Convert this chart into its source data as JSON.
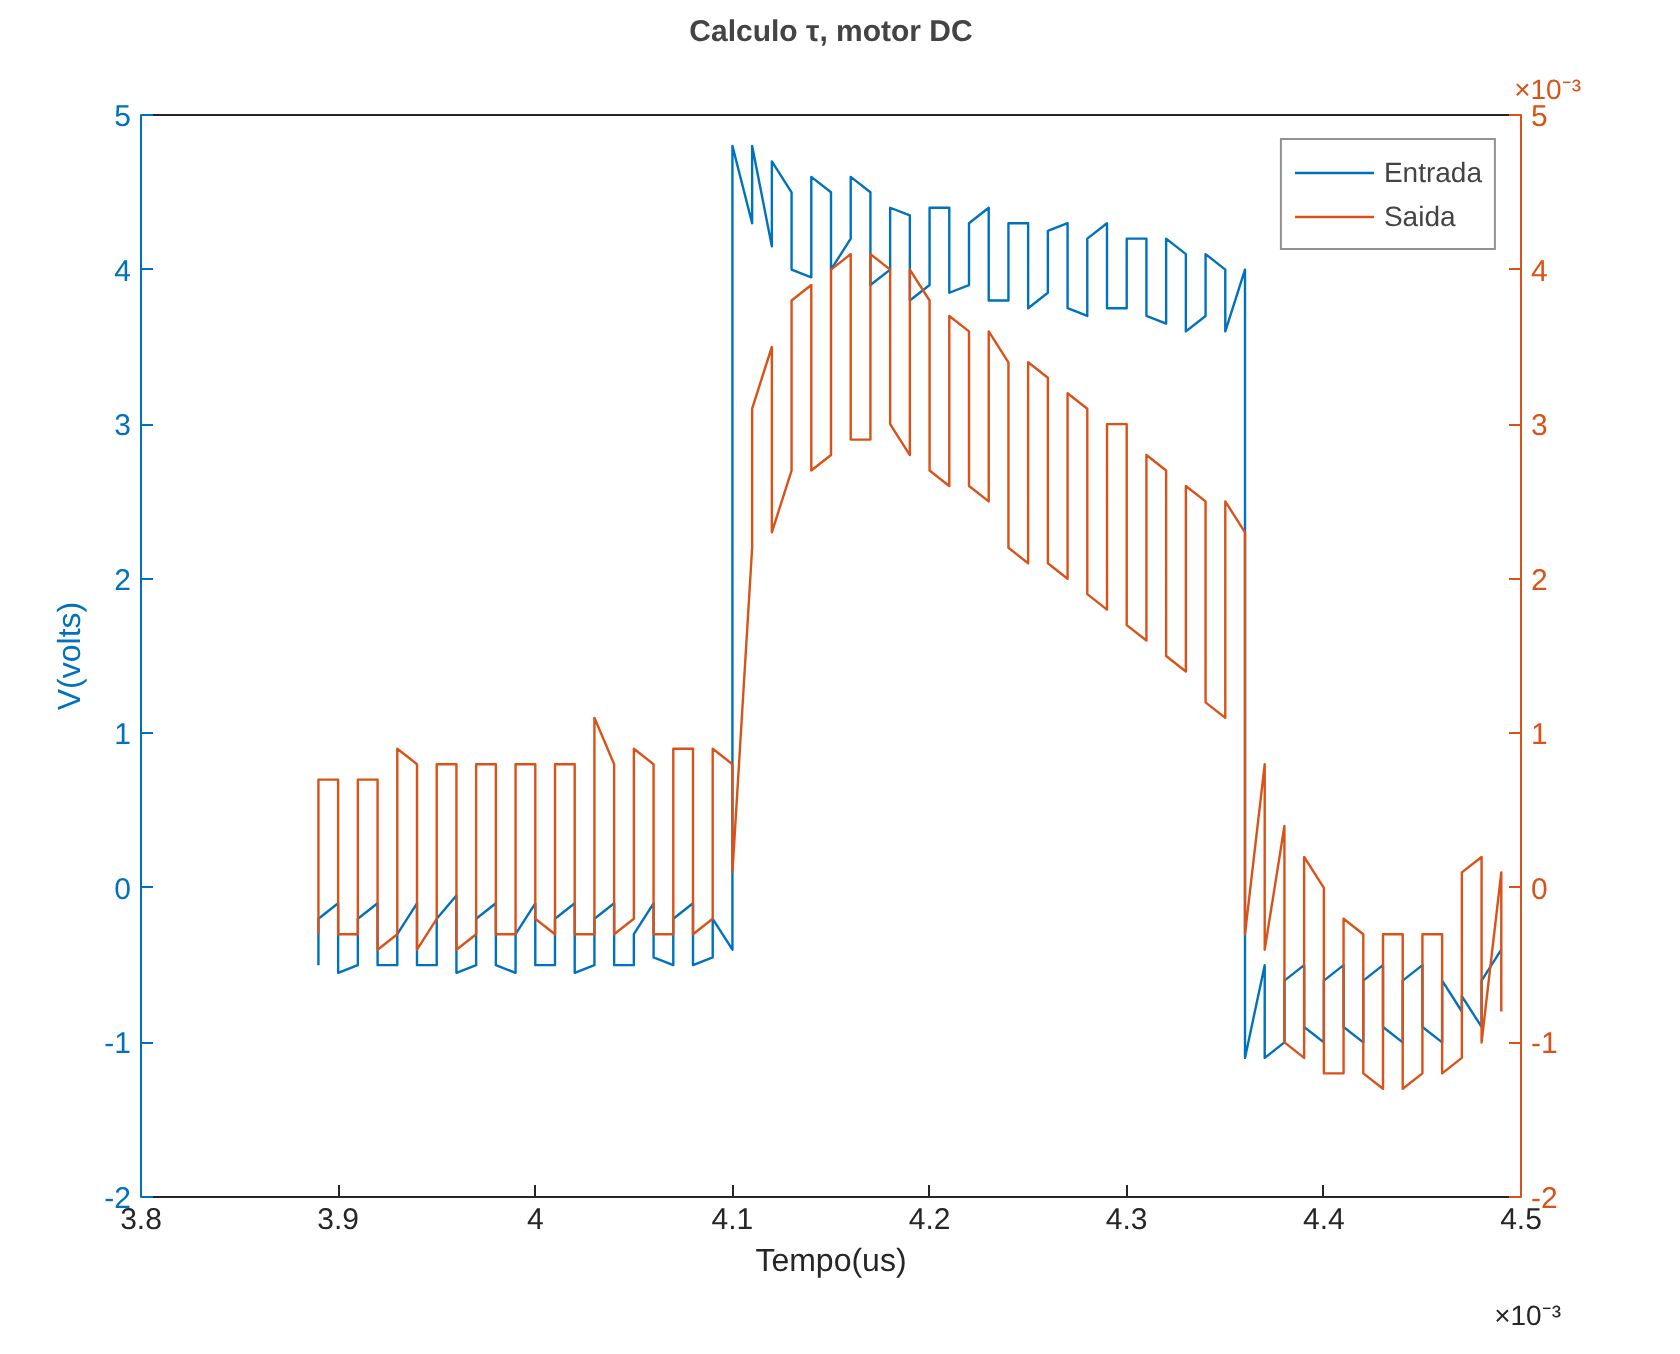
{
  "chart_data": {
    "type": "line",
    "title": "Calculo τ, motor DC",
    "xlabel": "Tempo(us)",
    "ylabel": "V(volts)",
    "annotations": [
      "×10⁻³",
      "×10⁻³"
    ],
    "xlim": [
      3.8,
      4.5
    ],
    "xticks": [
      3.8,
      3.9,
      4,
      4.1,
      4.2,
      4.3,
      4.4,
      4.5
    ],
    "ylim": [
      -2,
      5
    ],
    "yticks": [
      -2,
      -1,
      0,
      1,
      2,
      3,
      4,
      5
    ],
    "y2lim": [
      -2,
      5
    ],
    "y2ticks": [
      -2,
      -1,
      0,
      1,
      2,
      3,
      4,
      5
    ],
    "grid": false,
    "legend": "top right",
    "marker": "none",
    "line_style": "solid",
    "series": [
      {
        "name": "Entrada",
        "color": "#0072bd",
        "x": [
          3.89,
          3.89,
          3.9,
          3.9,
          3.91,
          3.91,
          3.92,
          3.92,
          3.93,
          3.93,
          3.94,
          3.94,
          3.95,
          3.95,
          3.96,
          3.96,
          3.97,
          3.97,
          3.98,
          3.98,
          3.99,
          3.99,
          4.0,
          4.0,
          4.01,
          4.01,
          4.02,
          4.02,
          4.03,
          4.03,
          4.04,
          4.04,
          4.05,
          4.05,
          4.06,
          4.06,
          4.07,
          4.07,
          4.08,
          4.08,
          4.09,
          4.09,
          4.1,
          4.1,
          4.11,
          4.11,
          4.12,
          4.12,
          4.13,
          4.13,
          4.14,
          4.14,
          4.15,
          4.15,
          4.16,
          4.16,
          4.17,
          4.17,
          4.18,
          4.18,
          4.19,
          4.19,
          4.2,
          4.2,
          4.21,
          4.21,
          4.22,
          4.22,
          4.23,
          4.23,
          4.24,
          4.24,
          4.25,
          4.25,
          4.26,
          4.26,
          4.27,
          4.27,
          4.28,
          4.28,
          4.29,
          4.29,
          4.3,
          4.3,
          4.31,
          4.31,
          4.32,
          4.32,
          4.33,
          4.33,
          4.34,
          4.34,
          4.35,
          4.35,
          4.36,
          4.36,
          4.37,
          4.37,
          4.38,
          4.38,
          4.39,
          4.39,
          4.4,
          4.4,
          4.41,
          4.41,
          4.42,
          4.42,
          4.43,
          4.43,
          4.44,
          4.44,
          4.45,
          4.45,
          4.46,
          4.46,
          4.47,
          4.47,
          4.48,
          4.48,
          4.49
        ],
        "values": [
          -0.5,
          -0.2,
          -0.1,
          -0.55,
          -0.5,
          -0.2,
          -0.1,
          -0.5,
          -0.5,
          -0.3,
          -0.1,
          -0.5,
          -0.5,
          -0.2,
          -0.05,
          -0.55,
          -0.5,
          -0.2,
          -0.1,
          -0.5,
          -0.55,
          -0.3,
          -0.1,
          -0.5,
          -0.5,
          -0.2,
          -0.1,
          -0.55,
          -0.5,
          -0.2,
          -0.1,
          -0.5,
          -0.5,
          -0.3,
          -0.1,
          -0.45,
          -0.5,
          -0.2,
          -0.1,
          -0.5,
          -0.45,
          -0.2,
          -0.4,
          4.8,
          4.3,
          4.8,
          4.15,
          4.7,
          4.5,
          4.0,
          3.95,
          4.6,
          4.5,
          4.0,
          4.2,
          4.6,
          4.5,
          3.9,
          4.0,
          4.4,
          4.35,
          3.8,
          3.9,
          4.4,
          4.4,
          3.85,
          3.9,
          4.3,
          4.4,
          3.8,
          3.8,
          4.3,
          4.3,
          3.75,
          3.85,
          4.25,
          4.3,
          3.75,
          3.7,
          4.2,
          4.3,
          3.75,
          3.75,
          4.2,
          4.2,
          3.7,
          3.65,
          4.2,
          4.1,
          3.6,
          3.7,
          4.1,
          4.0,
          3.6,
          4.0,
          -1.1,
          -0.5,
          -1.1,
          -1.0,
          -0.6,
          -0.5,
          -0.9,
          -1.0,
          -0.6,
          -0.5,
          -0.9,
          -1.0,
          -0.6,
          -0.5,
          -0.9,
          -1.0,
          -0.6,
          -0.5,
          -0.9,
          -1.0,
          -0.6,
          -0.8,
          -0.7,
          -0.9,
          -0.6,
          -0.4
        ]
      },
      {
        "name": "Saida",
        "color": "#d95319",
        "axis": "y2",
        "x": [
          3.89,
          3.89,
          3.9,
          3.9,
          3.91,
          3.91,
          3.92,
          3.92,
          3.93,
          3.93,
          3.94,
          3.94,
          3.95,
          3.95,
          3.96,
          3.96,
          3.97,
          3.97,
          3.98,
          3.98,
          3.99,
          3.99,
          4.0,
          4.0,
          4.01,
          4.01,
          4.02,
          4.02,
          4.03,
          4.03,
          4.04,
          4.04,
          4.05,
          4.05,
          4.06,
          4.06,
          4.07,
          4.07,
          4.08,
          4.08,
          4.09,
          4.09,
          4.1,
          4.1,
          4.11,
          4.11,
          4.12,
          4.12,
          4.13,
          4.13,
          4.14,
          4.14,
          4.15,
          4.15,
          4.16,
          4.16,
          4.17,
          4.17,
          4.18,
          4.18,
          4.19,
          4.19,
          4.2,
          4.2,
          4.21,
          4.21,
          4.22,
          4.22,
          4.23,
          4.23,
          4.24,
          4.24,
          4.25,
          4.25,
          4.26,
          4.26,
          4.27,
          4.27,
          4.28,
          4.28,
          4.29,
          4.29,
          4.3,
          4.3,
          4.31,
          4.31,
          4.32,
          4.32,
          4.33,
          4.33,
          4.34,
          4.34,
          4.35,
          4.35,
          4.36,
          4.36,
          4.37,
          4.37,
          4.38,
          4.38,
          4.39,
          4.39,
          4.4,
          4.4,
          4.41,
          4.41,
          4.42,
          4.42,
          4.43,
          4.43,
          4.44,
          4.44,
          4.45,
          4.45,
          4.46,
          4.46,
          4.47,
          4.47,
          4.48,
          4.48,
          4.49,
          4.49
        ],
        "values": [
          -0.3,
          0.7,
          0.7,
          -0.3,
          -0.3,
          0.7,
          0.7,
          -0.4,
          -0.3,
          0.9,
          0.8,
          -0.4,
          -0.2,
          0.8,
          0.8,
          -0.4,
          -0.3,
          0.8,
          0.8,
          -0.3,
          -0.3,
          0.8,
          0.8,
          -0.2,
          -0.3,
          0.8,
          0.8,
          -0.3,
          -0.3,
          1.1,
          0.8,
          -0.3,
          -0.2,
          0.9,
          0.8,
          -0.3,
          -0.3,
          0.9,
          0.9,
          -0.3,
          -0.2,
          0.9,
          0.8,
          0.1,
          2.2,
          3.1,
          3.5,
          2.3,
          2.7,
          3.8,
          3.9,
          2.7,
          2.8,
          4.0,
          4.1,
          2.9,
          2.9,
          4.1,
          4.0,
          3.0,
          2.8,
          4.0,
          3.8,
          2.7,
          2.6,
          3.7,
          3.6,
          2.6,
          2.5,
          3.6,
          3.4,
          2.2,
          2.1,
          3.4,
          3.3,
          2.1,
          2.0,
          3.2,
          3.1,
          1.9,
          1.8,
          3.0,
          3.0,
          1.7,
          1.6,
          2.8,
          2.7,
          1.5,
          1.4,
          2.6,
          2.5,
          1.2,
          1.1,
          2.5,
          2.3,
          -0.3,
          0.8,
          -0.4,
          0.4,
          -1.0,
          -1.1,
          0.2,
          0.0,
          -1.2,
          -1.2,
          -0.2,
          -0.3,
          -1.2,
          -1.3,
          -0.3,
          -0.3,
          -1.3,
          -1.2,
          -0.3,
          -0.3,
          -1.2,
          -1.1,
          0.1,
          0.2,
          -1.0,
          0.1,
          -0.8
        ]
      }
    ]
  }
}
